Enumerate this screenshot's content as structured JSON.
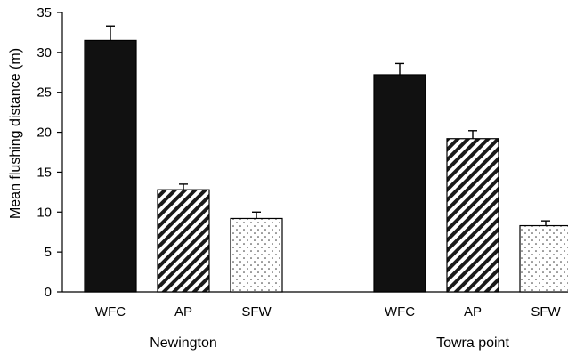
{
  "chart_data": {
    "type": "bar",
    "title": "",
    "ylabel": "Mean flushing distance (m)",
    "ylim": [
      0,
      35
    ],
    "yticks": [
      0,
      5,
      10,
      15,
      20,
      25,
      30,
      35
    ],
    "grid": false,
    "categories": [
      "WFC",
      "AP",
      "SFW"
    ],
    "groups": [
      {
        "name": "Newington",
        "bars": [
          {
            "category": "WFC",
            "value": 31.5,
            "error": 1.8,
            "pattern": "solid"
          },
          {
            "category": "AP",
            "value": 12.8,
            "error": 0.7,
            "pattern": "hatch"
          },
          {
            "category": "SFW",
            "value": 9.2,
            "error": 0.8,
            "pattern": "dots"
          }
        ]
      },
      {
        "name": "Towra point",
        "bars": [
          {
            "category": "WFC",
            "value": 27.2,
            "error": 1.4,
            "pattern": "solid"
          },
          {
            "category": "AP",
            "value": 19.2,
            "error": 1.0,
            "pattern": "hatch"
          },
          {
            "category": "SFW",
            "value": 8.3,
            "error": 0.6,
            "pattern": "dots"
          }
        ]
      }
    ]
  }
}
